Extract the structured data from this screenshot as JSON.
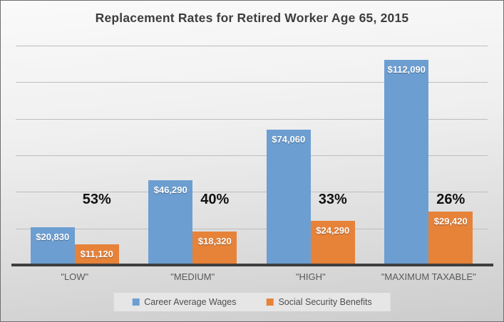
{
  "chart_data": {
    "type": "bar",
    "title": "Replacement Rates for Retired Worker Age 65, 2015",
    "categories": [
      "\"LOW\"",
      "\"MEDIUM\"",
      "\"HIGH\"",
      "\"MAXIMUM TAXABLE\""
    ],
    "series": [
      {
        "name": "Career Average Wages",
        "color": "#6C9ED2",
        "values": [
          20830,
          46290,
          74060,
          112090
        ],
        "labels": [
          "$20,830",
          "$46,290",
          "$74,060",
          "$112,090"
        ]
      },
      {
        "name": "Social Security Benefits",
        "color": "#E78239",
        "values": [
          11120,
          18320,
          24290,
          29420
        ],
        "labels": [
          "$11,120",
          "$18,320",
          "$24,290",
          "$29,420"
        ]
      }
    ],
    "annotations": {
      "replacement_rates": [
        "53%",
        "40%",
        "33%",
        "26%"
      ]
    },
    "xlabel": "",
    "ylabel": "",
    "ylim": [
      0,
      120000
    ],
    "gridline_step": 20000,
    "grid": true,
    "y_axis_tick_labels_visible": false,
    "legend_position": "bottom",
    "styles": {
      "gridline_color": "#bdbdbd",
      "axis_line_color": "#3f3f3f",
      "title_color": "#3d3d3d",
      "category_label_color": "#595959",
      "value_label_color": "#ffffff",
      "percent_label_color": "#111111",
      "legend_background": "#e6e6e6"
    }
  }
}
